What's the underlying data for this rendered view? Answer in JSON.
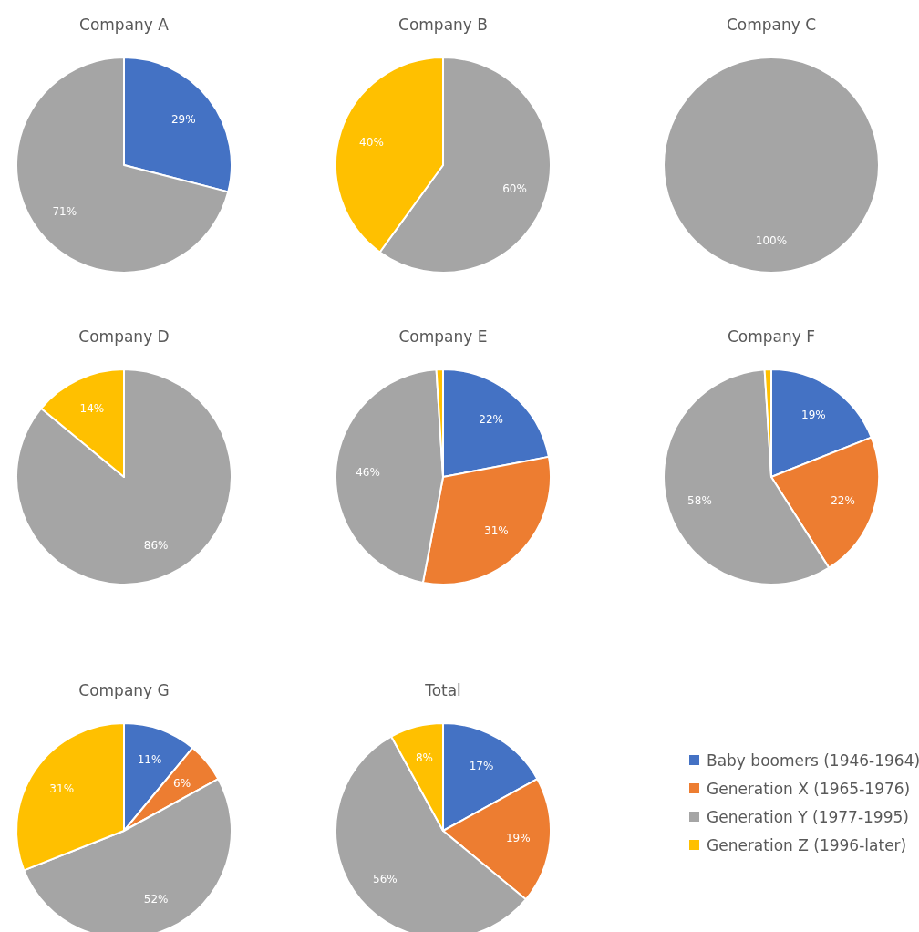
{
  "chart_data": [
    {
      "type": "pie",
      "title": "Company A",
      "categories": [
        null,
        null
      ],
      "values": [
        29,
        71
      ],
      "colors": [
        "#4472c4",
        "#a5a5a5"
      ],
      "value_labels": [
        "29%",
        "71%"
      ]
    },
    {
      "type": "pie",
      "title": "Company B",
      "categories": [
        null,
        null
      ],
      "values": [
        60,
        40
      ],
      "colors": [
        "#a5a5a5",
        "#ffc000"
      ],
      "value_labels": [
        "60%",
        "40%"
      ]
    },
    {
      "type": "pie",
      "title": "Company C",
      "categories": [
        null
      ],
      "values": [
        100
      ],
      "colors": [
        "#a5a5a5"
      ],
      "value_labels": [
        "100%"
      ]
    },
    {
      "type": "pie",
      "title": "Company D",
      "categories": [
        null,
        null
      ],
      "values": [
        86,
        14
      ],
      "colors": [
        "#a5a5a5",
        "#ffc000"
      ],
      "value_labels": [
        "86%",
        "14%"
      ]
    },
    {
      "type": "pie",
      "title": "Company E",
      "categories": [
        null,
        null,
        null,
        null
      ],
      "values": [
        22,
        31,
        46,
        1
      ],
      "colors": [
        "#4472c4",
        "#ed7d31",
        "#a5a5a5",
        "#ffc000"
      ],
      "value_labels": [
        "22%",
        "31%",
        "46%",
        null
      ]
    },
    {
      "type": "pie",
      "title": "Company F",
      "categories": [
        null,
        null,
        null,
        null
      ],
      "values": [
        19,
        22,
        58,
        1
      ],
      "colors": [
        "#4472c4",
        "#ed7d31",
        "#a5a5a5",
        "#ffc000"
      ],
      "value_labels": [
        "19%",
        "22%",
        "58%",
        null
      ]
    },
    {
      "type": "pie",
      "title": "Company G",
      "categories": [
        null,
        null,
        null,
        null
      ],
      "values": [
        11,
        6,
        52,
        31
      ],
      "colors": [
        "#4472c4",
        "#ed7d31",
        "#a5a5a5",
        "#ffc000"
      ],
      "value_labels": [
        "11%",
        "6%",
        "52%",
        "31%"
      ]
    },
    {
      "type": "pie",
      "title": "Total",
      "categories": [
        "Baby boomers (1946-1964)",
        "Generation X (1965-1976)",
        "Generation Y (1977-1995)",
        "Generation Z (1996-later)"
      ],
      "values": [
        17,
        19,
        56,
        8
      ],
      "colors": [
        "#4472c4",
        "#ed7d31",
        "#a5a5a5",
        "#ffc000"
      ],
      "value_labels": [
        "17%",
        "19%",
        "56%",
        "8%"
      ],
      "legend": "right"
    }
  ]
}
